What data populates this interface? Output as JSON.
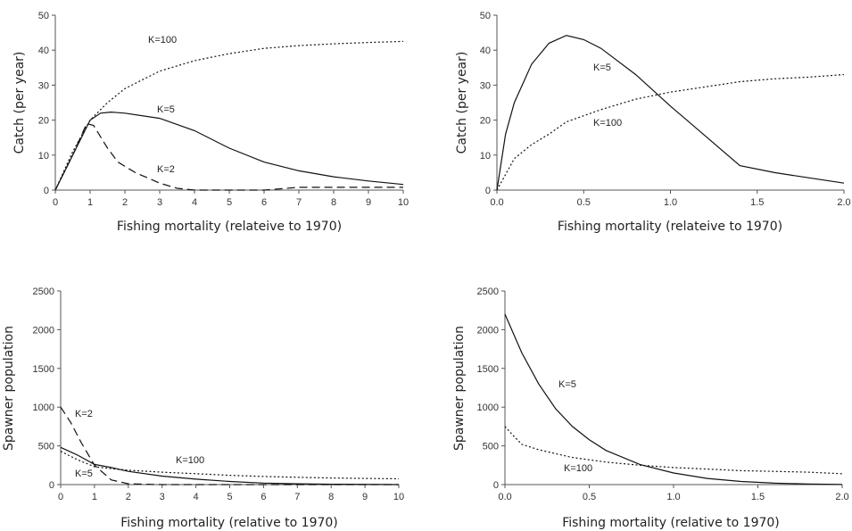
{
  "chart_data": [
    {
      "type": "line",
      "xlabel": "Fishing mortality (relateive to 1970)",
      "ylabel": "Catch (per year)",
      "xlim": [
        0,
        10
      ],
      "ylim": [
        0,
        50
      ],
      "xticks": [
        "0",
        "1",
        "2",
        "3",
        "4",
        "5",
        "6",
        "7",
        "8",
        "9",
        "10"
      ],
      "yticks": [
        "0",
        "10",
        "20",
        "30",
        "40",
        "50"
      ],
      "annotations": [
        "K=100",
        "K=5",
        "K=2"
      ],
      "series": [
        {
          "name": "K=100",
          "style": "dotted",
          "x": [
            0,
            0.5,
            1,
            1.5,
            2,
            3,
            4,
            5,
            6,
            7,
            8,
            9,
            10
          ],
          "y": [
            0,
            11,
            20,
            25,
            29,
            34,
            37,
            39,
            40.5,
            41.3,
            41.8,
            42.2,
            42.5
          ]
        },
        {
          "name": "K=5",
          "style": "solid",
          "x": [
            0,
            0.5,
            1,
            1.3,
            1.6,
            2,
            3,
            4,
            5,
            6,
            7,
            8,
            9,
            10
          ],
          "y": [
            0,
            10,
            20,
            22,
            22.3,
            22,
            20.5,
            17,
            12,
            8,
            5.5,
            3.8,
            2.6,
            1.6
          ]
        },
        {
          "name": "K=2",
          "style": "dashed",
          "x": [
            0,
            0.5,
            0.9,
            1.1,
            1.5,
            1.8,
            2.3,
            3,
            3.5,
            4,
            6,
            7,
            8,
            10
          ],
          "y": [
            0,
            10,
            19,
            18.5,
            12,
            8,
            5,
            2,
            0.5,
            0,
            0,
            0.8,
            0.8,
            0.8
          ]
        }
      ]
    },
    {
      "type": "line",
      "xlabel": "Fishing mortality (relateive to 1970)",
      "ylabel": "Catch (per year)",
      "xlim": [
        0,
        2
      ],
      "ylim": [
        0,
        50
      ],
      "xticks": [
        "0.0",
        "0.5",
        "1.0",
        "1.5",
        "2.0"
      ],
      "yticks": [
        "0",
        "10",
        "20",
        "30",
        "40",
        "50"
      ],
      "annotations": [
        "K=5",
        "K=100"
      ],
      "series": [
        {
          "name": "K=5",
          "style": "solid",
          "x": [
            0,
            0.05,
            0.1,
            0.2,
            0.3,
            0.4,
            0.5,
            0.6,
            0.8,
            1.0,
            1.2,
            1.4,
            1.6,
            1.8,
            2.0
          ],
          "y": [
            0,
            16,
            25,
            36,
            42,
            44.2,
            43,
            40.5,
            33,
            24,
            15.5,
            7,
            5,
            3.5,
            2
          ]
        },
        {
          "name": "K=100",
          "style": "dotted",
          "x": [
            0,
            0.1,
            0.2,
            0.3,
            0.4,
            0.6,
            0.8,
            1.0,
            1.2,
            1.4,
            1.6,
            1.8,
            2.0
          ],
          "y": [
            0,
            9,
            13,
            16,
            19.5,
            23,
            26,
            28,
            29.5,
            31,
            31.8,
            32.3,
            33
          ]
        }
      ]
    },
    {
      "type": "line",
      "xlabel": "Fishing mortality (relative to 1970)",
      "ylabel": "Spawner population",
      "xlim": [
        0,
        10
      ],
      "ylim": [
        0,
        2500
      ],
      "xticks": [
        "0",
        "1",
        "2",
        "3",
        "4",
        "5",
        "6",
        "7",
        "8",
        "9",
        "10"
      ],
      "yticks": [
        "0",
        "500",
        "1000",
        "1500",
        "2000",
        "2500"
      ],
      "annotations": [
        "K=2",
        "K=100",
        "K=5"
      ],
      "series": [
        {
          "name": "K=2",
          "style": "dashed",
          "x": [
            0,
            0.3,
            0.6,
            1,
            1.5,
            2,
            3,
            4,
            5,
            6,
            8,
            10
          ],
          "y": [
            1000,
            800,
            550,
            250,
            60,
            10,
            0,
            0,
            0,
            0,
            0,
            0
          ]
        },
        {
          "name": "K=5",
          "style": "solid",
          "x": [
            0,
            0.5,
            1,
            1.5,
            2,
            3,
            4,
            5,
            6,
            7,
            8,
            10
          ],
          "y": [
            480,
            380,
            260,
            220,
            170,
            110,
            70,
            40,
            20,
            10,
            5,
            0
          ]
        },
        {
          "name": "K=100",
          "style": "dotted",
          "x": [
            0,
            0.5,
            1,
            1.5,
            2,
            3,
            4,
            5,
            6,
            7,
            8,
            9,
            10
          ],
          "y": [
            430,
            320,
            230,
            205,
            185,
            160,
            140,
            120,
            105,
            95,
            85,
            80,
            75
          ]
        }
      ]
    },
    {
      "type": "line",
      "xlabel": "Fishing mortality (relative to 1970)",
      "ylabel": "Spawner population",
      "xlim": [
        0,
        2
      ],
      "ylim": [
        0,
        2500
      ],
      "xticks": [
        "0.0",
        "0.5",
        "1.0",
        "1.5",
        "2.0"
      ],
      "yticks": [
        "0",
        "500",
        "1000",
        "1500",
        "2000",
        "2500"
      ],
      "annotations": [
        "K=5",
        "K=100"
      ],
      "series": [
        {
          "name": "K=5",
          "style": "solid",
          "x": [
            0,
            0.1,
            0.2,
            0.3,
            0.4,
            0.5,
            0.6,
            0.8,
            1.0,
            1.2,
            1.4,
            1.6,
            1.8,
            2.0
          ],
          "y": [
            2200,
            1700,
            1300,
            980,
            750,
            580,
            440,
            260,
            150,
            80,
            40,
            18,
            8,
            2
          ]
        },
        {
          "name": "K=100",
          "style": "dotted",
          "x": [
            0,
            0.05,
            0.1,
            0.2,
            0.3,
            0.4,
            0.6,
            0.8,
            1.0,
            1.2,
            1.4,
            1.6,
            1.8,
            2.0
          ],
          "y": [
            750,
            630,
            520,
            450,
            400,
            350,
            290,
            250,
            220,
            200,
            180,
            170,
            160,
            140
          ]
        }
      ]
    }
  ]
}
